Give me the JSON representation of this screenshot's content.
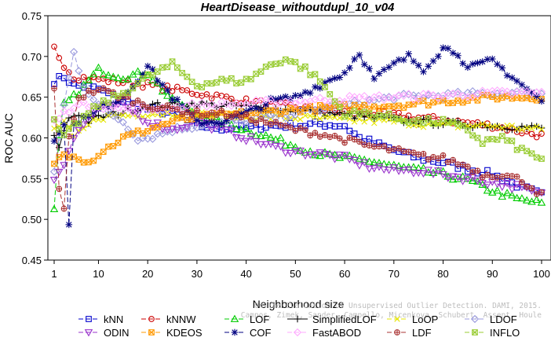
{
  "chart_data": {
    "type": "line",
    "title": "HeartDisease_withoutdupl_10_v04",
    "xlabel": "Neighborhood size",
    "ylabel": "ROC AUC",
    "xlim": [
      1,
      100
    ],
    "ylim": [
      0.45,
      0.75
    ],
    "x_ticks": [
      1,
      10,
      20,
      30,
      40,
      50,
      60,
      70,
      80,
      90,
      100
    ],
    "y_ticks": [
      0.45,
      0.5,
      0.55,
      0.6,
      0.65,
      0.7,
      0.75
    ],
    "grid": false,
    "legend_position": "bottom",
    "watermark_lines": [
      "On the Evaluation of Unsupervised Outlier Detection. DAMI, 2015.",
      "Campos, Zimek, Sander, Campello, Micenkova, Schubert, Assent, Houle"
    ],
    "series": [
      {
        "name": "kNN",
        "color": "#0000cc",
        "marker": "square",
        "dash": "6,3",
        "anchors": [
          [
            1,
            0.67
          ],
          [
            3,
            0.675
          ],
          [
            5,
            0.665
          ],
          [
            10,
            0.66
          ],
          [
            15,
            0.645
          ],
          [
            20,
            0.635
          ],
          [
            25,
            0.63
          ],
          [
            30,
            0.615
          ],
          [
            35,
            0.612
          ],
          [
            40,
            0.612
          ],
          [
            45,
            0.615
          ],
          [
            50,
            0.615
          ],
          [
            55,
            0.617
          ],
          [
            60,
            0.615
          ],
          [
            63,
            0.6
          ],
          [
            70,
            0.585
          ],
          [
            75,
            0.575
          ],
          [
            80,
            0.57
          ],
          [
            85,
            0.562
          ],
          [
            90,
            0.555
          ],
          [
            95,
            0.542
          ],
          [
            100,
            0.53
          ]
        ]
      },
      {
        "name": "kNNW",
        "color": "#cc0000",
        "marker": "circle",
        "dash": "6,3",
        "anchors": [
          [
            1,
            0.71
          ],
          [
            3,
            0.69
          ],
          [
            5,
            0.675
          ],
          [
            10,
            0.672
          ],
          [
            20,
            0.665
          ],
          [
            30,
            0.655
          ],
          [
            40,
            0.645
          ],
          [
            50,
            0.638
          ],
          [
            60,
            0.632
          ],
          [
            70,
            0.628
          ],
          [
            80,
            0.622
          ],
          [
            90,
            0.615
          ],
          [
            100,
            0.603
          ]
        ]
      },
      {
        "name": "LOF",
        "color": "#00cc00",
        "marker": "triangle-up",
        "dash": "6,3",
        "anchors": [
          [
            1,
            0.51
          ],
          [
            2,
            0.6
          ],
          [
            3,
            0.64
          ],
          [
            5,
            0.65
          ],
          [
            10,
            0.683
          ],
          [
            15,
            0.675
          ],
          [
            20,
            0.68
          ],
          [
            25,
            0.645
          ],
          [
            30,
            0.63
          ],
          [
            35,
            0.62
          ],
          [
            40,
            0.61
          ],
          [
            45,
            0.6
          ],
          [
            50,
            0.59
          ],
          [
            55,
            0.58
          ],
          [
            60,
            0.575
          ],
          [
            65,
            0.572
          ],
          [
            70,
            0.565
          ],
          [
            75,
            0.56
          ],
          [
            80,
            0.555
          ],
          [
            85,
            0.548
          ],
          [
            90,
            0.535
          ],
          [
            95,
            0.525
          ],
          [
            100,
            0.52
          ]
        ]
      },
      {
        "name": "SimplifiedLOF",
        "color": "#000000",
        "marker": "plus",
        "dash": "none",
        "anchors": [
          [
            1,
            0.6
          ],
          [
            2,
            0.59
          ],
          [
            4,
            0.625
          ],
          [
            6,
            0.63
          ],
          [
            8,
            0.62
          ],
          [
            10,
            0.625
          ],
          [
            15,
            0.632
          ],
          [
            20,
            0.64
          ],
          [
            25,
            0.64
          ],
          [
            30,
            0.642
          ],
          [
            40,
            0.638
          ],
          [
            50,
            0.634
          ],
          [
            60,
            0.628
          ],
          [
            70,
            0.622
          ],
          [
            80,
            0.618
          ],
          [
            90,
            0.615
          ],
          [
            100,
            0.612
          ]
        ]
      },
      {
        "name": "LoOP",
        "color": "#e6e600",
        "marker": "x",
        "dash": "6,3",
        "anchors": [
          [
            1,
            0.61
          ],
          [
            3,
            0.62
          ],
          [
            5,
            0.6
          ],
          [
            10,
            0.625
          ],
          [
            20,
            0.63
          ],
          [
            30,
            0.63
          ],
          [
            40,
            0.625
          ],
          [
            50,
            0.625
          ],
          [
            60,
            0.622
          ],
          [
            70,
            0.62
          ],
          [
            80,
            0.615
          ],
          [
            90,
            0.615
          ],
          [
            100,
            0.61
          ]
        ]
      },
      {
        "name": "LDOF",
        "color": "#9999dd",
        "marker": "diamond",
        "dash": "6,3",
        "anchors": [
          [
            1,
            0.56
          ],
          [
            3,
            0.64
          ],
          [
            5,
            0.705
          ],
          [
            7,
            0.665
          ],
          [
            10,
            0.64
          ],
          [
            15,
            0.62
          ],
          [
            18,
            0.6
          ],
          [
            20,
            0.6
          ],
          [
            25,
            0.61
          ],
          [
            30,
            0.615
          ],
          [
            40,
            0.62
          ],
          [
            50,
            0.63
          ],
          [
            60,
            0.64
          ],
          [
            70,
            0.65
          ],
          [
            80,
            0.652
          ],
          [
            90,
            0.655
          ],
          [
            100,
            0.655
          ]
        ]
      },
      {
        "name": "ODIN",
        "color": "#9933cc",
        "marker": "triangle-down",
        "dash": "6,3",
        "anchors": [
          [
            1,
            0.55
          ],
          [
            3,
            0.57
          ],
          [
            5,
            0.6
          ],
          [
            8,
            0.625
          ],
          [
            10,
            0.635
          ],
          [
            15,
            0.64
          ],
          [
            20,
            0.62
          ],
          [
            25,
            0.61
          ],
          [
            30,
            0.62
          ],
          [
            35,
            0.61
          ],
          [
            40,
            0.6
          ],
          [
            45,
            0.59
          ],
          [
            50,
            0.583
          ],
          [
            55,
            0.58
          ],
          [
            60,
            0.575
          ],
          [
            65,
            0.565
          ],
          [
            70,
            0.56
          ],
          [
            75,
            0.56
          ],
          [
            80,
            0.555
          ],
          [
            85,
            0.55
          ],
          [
            90,
            0.545
          ],
          [
            95,
            0.54
          ],
          [
            100,
            0.53
          ]
        ]
      },
      {
        "name": "KDEOS",
        "color": "#ff9900",
        "marker": "square-x",
        "dash": "6,3",
        "anchors": [
          [
            1,
            0.57
          ],
          [
            3,
            0.58
          ],
          [
            5,
            0.58
          ],
          [
            8,
            0.57
          ],
          [
            10,
            0.58
          ],
          [
            15,
            0.6
          ],
          [
            20,
            0.61
          ],
          [
            25,
            0.62
          ],
          [
            30,
            0.625
          ],
          [
            40,
            0.63
          ],
          [
            50,
            0.635
          ],
          [
            60,
            0.638
          ],
          [
            70,
            0.64
          ],
          [
            80,
            0.645
          ],
          [
            90,
            0.65
          ],
          [
            100,
            0.65
          ]
        ]
      },
      {
        "name": "COF",
        "color": "#000080",
        "marker": "star",
        "dash": "6,3",
        "anchors": [
          [
            1,
            0.595
          ],
          [
            2,
            0.605
          ],
          [
            3,
            0.62
          ],
          [
            4,
            0.49
          ],
          [
            5,
            0.62
          ],
          [
            8,
            0.625
          ],
          [
            10,
            0.635
          ],
          [
            15,
            0.65
          ],
          [
            20,
            0.688
          ],
          [
            25,
            0.65
          ],
          [
            30,
            0.62
          ],
          [
            35,
            0.62
          ],
          [
            40,
            0.63
          ],
          [
            45,
            0.645
          ],
          [
            50,
            0.65
          ],
          [
            55,
            0.665
          ],
          [
            60,
            0.68
          ],
          [
            63,
            0.705
          ],
          [
            66,
            0.672
          ],
          [
            70,
            0.69
          ],
          [
            73,
            0.7
          ],
          [
            76,
            0.685
          ],
          [
            80,
            0.71
          ],
          [
            83,
            0.705
          ],
          [
            85,
            0.685
          ],
          [
            90,
            0.695
          ],
          [
            95,
            0.67
          ],
          [
            100,
            0.645
          ]
        ]
      },
      {
        "name": "FastABOD",
        "color": "#ffaaff",
        "marker": "diamond",
        "dash": "6,3",
        "anchors": [
          [
            1,
            0.62
          ],
          [
            3,
            0.63
          ],
          [
            5,
            0.64
          ],
          [
            10,
            0.64
          ],
          [
            15,
            0.635
          ],
          [
            20,
            0.635
          ],
          [
            30,
            0.64
          ],
          [
            40,
            0.642
          ],
          [
            50,
            0.645
          ],
          [
            60,
            0.648
          ],
          [
            70,
            0.65
          ],
          [
            80,
            0.652
          ],
          [
            90,
            0.655
          ],
          [
            100,
            0.655
          ]
        ]
      },
      {
        "name": "LDF",
        "color": "#aa3333",
        "marker": "circle-plus",
        "dash": "6,3",
        "anchors": [
          [
            1,
            0.66
          ],
          [
            2,
            0.54
          ],
          [
            3,
            0.51
          ],
          [
            4,
            0.6
          ],
          [
            6,
            0.65
          ],
          [
            10,
            0.66
          ],
          [
            15,
            0.65
          ],
          [
            20,
            0.64
          ],
          [
            25,
            0.635
          ],
          [
            30,
            0.63
          ],
          [
            35,
            0.63
          ],
          [
            40,
            0.625
          ],
          [
            45,
            0.618
          ],
          [
            50,
            0.61
          ],
          [
            55,
            0.605
          ],
          [
            60,
            0.598
          ],
          [
            65,
            0.59
          ],
          [
            70,
            0.585
          ],
          [
            75,
            0.578
          ],
          [
            80,
            0.575
          ],
          [
            85,
            0.565
          ],
          [
            88,
            0.555
          ],
          [
            92,
            0.555
          ],
          [
            96,
            0.548
          ],
          [
            100,
            0.53
          ]
        ]
      },
      {
        "name": "INFLO",
        "color": "#99cc33",
        "marker": "square-x",
        "dash": "6,3",
        "anchors": [
          [
            1,
            0.62
          ],
          [
            3,
            0.6
          ],
          [
            5,
            0.615
          ],
          [
            10,
            0.64
          ],
          [
            15,
            0.655
          ],
          [
            20,
            0.675
          ],
          [
            25,
            0.69
          ],
          [
            28,
            0.675
          ],
          [
            30,
            0.665
          ],
          [
            35,
            0.67
          ],
          [
            40,
            0.67
          ],
          [
            45,
            0.69
          ],
          [
            48,
            0.697
          ],
          [
            52,
            0.685
          ],
          [
            55,
            0.67
          ],
          [
            58,
            0.645
          ],
          [
            60,
            0.63
          ],
          [
            65,
            0.63
          ],
          [
            70,
            0.625
          ],
          [
            75,
            0.62
          ],
          [
            80,
            0.62
          ],
          [
            85,
            0.61
          ],
          [
            88,
            0.595
          ],
          [
            92,
            0.6
          ],
          [
            96,
            0.585
          ],
          [
            100,
            0.575
          ]
        ]
      }
    ]
  }
}
